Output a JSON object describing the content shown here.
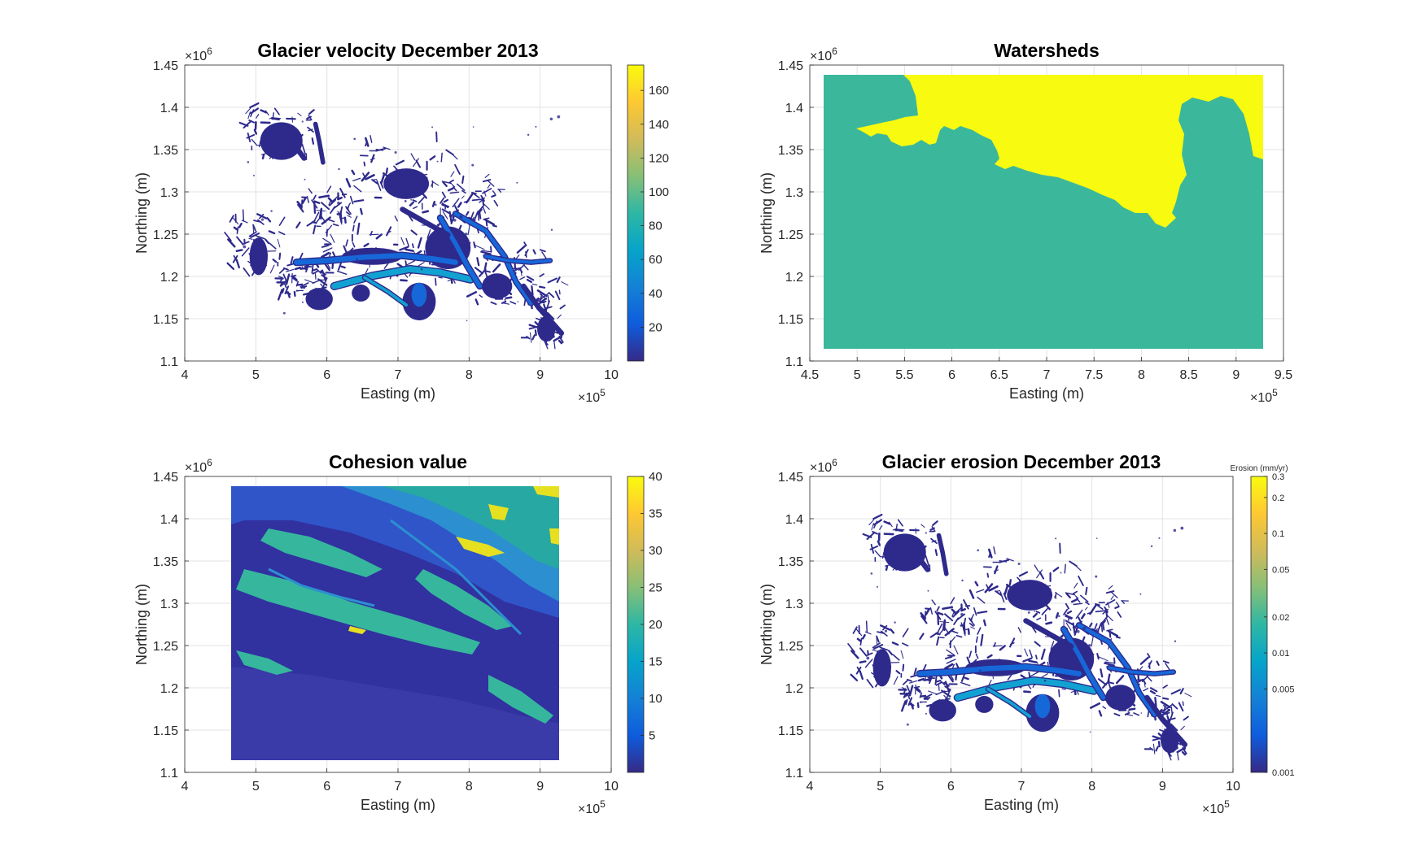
{
  "figure": {
    "background": "#ffffff"
  },
  "chart_data": [
    {
      "id": "velocity",
      "type": "heatmap",
      "title": "Glacier velocity December 2013",
      "xlabel": "Easting (m)",
      "ylabel": "Northing (m)",
      "xlim": [
        400000,
        1000000
      ],
      "ylim": [
        1100000,
        1450000
      ],
      "xticks": [
        "4",
        "5",
        "6",
        "7",
        "8",
        "9",
        "10"
      ],
      "yticks": [
        "1.1",
        "1.15",
        "1.2",
        "1.25",
        "1.3",
        "1.35",
        "1.4",
        "1.45"
      ],
      "x_exponent": "×10",
      "x_exponent_power": "5",
      "y_exponent": "×10",
      "y_exponent_power": "6",
      "grid": true,
      "colorbar": {
        "scale": "linear",
        "range": [
          0,
          175
        ],
        "ticks": [
          "20",
          "40",
          "60",
          "80",
          "100",
          "120",
          "140",
          "160"
        ],
        "tick_values": [
          20,
          40,
          60,
          80,
          100,
          120,
          140,
          160
        ],
        "label": ""
      }
    },
    {
      "id": "watersheds",
      "type": "heatmap",
      "title": "Watersheds",
      "xlabel": "Easting (m)",
      "ylabel": "Northing (m)",
      "xlim": [
        450000,
        950000
      ],
      "ylim": [
        1100000,
        1450000
      ],
      "xticks": [
        "4.5",
        "5",
        "5.5",
        "6",
        "6.5",
        "7",
        "7.5",
        "8",
        "8.5",
        "9",
        "9.5"
      ],
      "yticks": [
        "1.1",
        "1.15",
        "1.2",
        "1.25",
        "1.3",
        "1.35",
        "1.4",
        "1.45"
      ],
      "x_exponent": "×10",
      "x_exponent_power": "5",
      "y_exponent": "×10",
      "y_exponent_power": "6",
      "grid": true,
      "colors": {
        "south": "#3bb89c",
        "north": "#f8fa0f"
      }
    },
    {
      "id": "cohesion",
      "type": "heatmap",
      "title": "Cohesion value",
      "xlabel": "Easting (m)",
      "ylabel": "Northing (m)",
      "xlim": [
        400000,
        1000000
      ],
      "ylim": [
        1100000,
        1450000
      ],
      "xticks": [
        "4",
        "5",
        "6",
        "7",
        "8",
        "9",
        "10"
      ],
      "yticks": [
        "1.1",
        "1.15",
        "1.2",
        "1.25",
        "1.3",
        "1.35",
        "1.4",
        "1.45"
      ],
      "x_exponent": "×10",
      "x_exponent_power": "5",
      "y_exponent": "×10",
      "y_exponent_power": "6",
      "grid": true,
      "colorbar": {
        "scale": "linear",
        "range": [
          0,
          40
        ],
        "ticks": [
          "5",
          "10",
          "15",
          "20",
          "25",
          "30",
          "35",
          "40"
        ],
        "tick_values": [
          5,
          10,
          15,
          20,
          25,
          30,
          35,
          40
        ],
        "label": ""
      }
    },
    {
      "id": "erosion",
      "type": "heatmap",
      "title": "Glacier erosion December 2013",
      "xlabel": "Easting (m)",
      "ylabel": "Northing (m)",
      "xlim": [
        400000,
        1000000
      ],
      "ylim": [
        1100000,
        1450000
      ],
      "xticks": [
        "4",
        "5",
        "6",
        "7",
        "8",
        "9",
        "10"
      ],
      "yticks": [
        "1.1",
        "1.15",
        "1.2",
        "1.25",
        "1.3",
        "1.35",
        "1.4",
        "1.45"
      ],
      "x_exponent": "×10",
      "x_exponent_power": "5",
      "y_exponent": "×10",
      "y_exponent_power": "6",
      "grid": true,
      "colorbar": {
        "scale": "log",
        "range": [
          0.001,
          0.3
        ],
        "ticks": [
          "0.001",
          "0.005",
          "0.01",
          "0.02",
          "0.05",
          "0.1",
          "0.2",
          "0.3"
        ],
        "tick_values": [
          0.001,
          0.005,
          0.01,
          0.02,
          0.05,
          0.1,
          0.2,
          0.3
        ],
        "label": "Erosion (mm/yr)"
      }
    }
  ],
  "palette": {
    "parula": [
      "#352a87",
      "#0f5cdd",
      "#1481d6",
      "#06a4ca",
      "#2eb7a4",
      "#87bf77",
      "#d1bb59",
      "#fec832",
      "#f9fb0e"
    ],
    "glacier_dark": "#2e2a8c",
    "glacier_mid": "#1668d9",
    "glacier_fast": "#12a2d1"
  }
}
